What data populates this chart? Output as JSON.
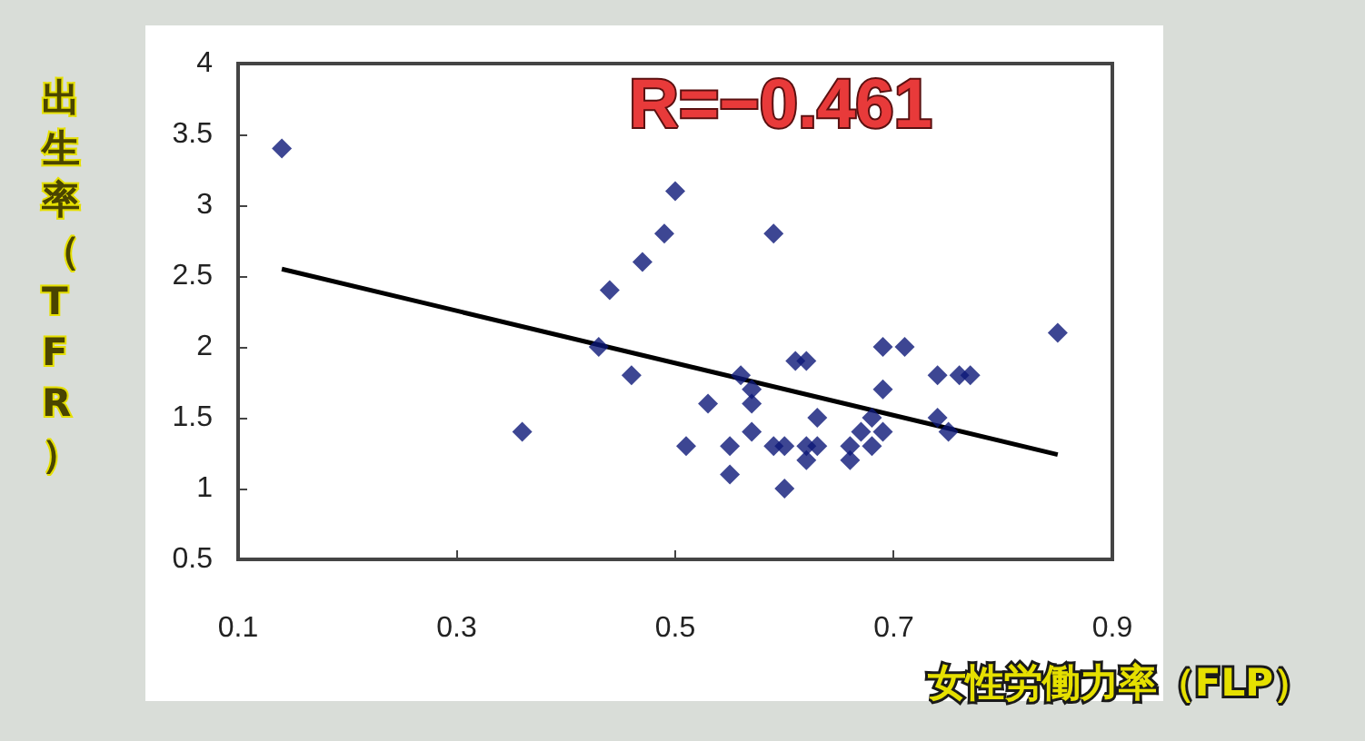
{
  "chart_data": {
    "type": "scatter",
    "xlabel": "女性労働力率（FLP）",
    "ylabel": "出生率（TFR）",
    "annotations": [
      "R=−0.461"
    ],
    "xlim": [
      0.1,
      0.9
    ],
    "xticks": [
      0.1,
      0.3,
      0.5,
      0.7,
      0.9
    ],
    "ylim": [
      0.5,
      4
    ],
    "yticks": [
      0.5,
      1,
      1.5,
      2,
      2.5,
      3,
      3.5,
      4
    ],
    "grid": false,
    "marker": "diamond",
    "series": [
      {
        "color": "#0c1878",
        "x": [
          0.14,
          0.36,
          0.43,
          0.44,
          0.46,
          0.47,
          0.49,
          0.5,
          0.51,
          0.59,
          0.85,
          0.53,
          0.56,
          0.57,
          0.57,
          0.57,
          0.55,
          0.55,
          0.6,
          0.59,
          0.6,
          0.61,
          0.62,
          0.62,
          0.62,
          0.63,
          0.63,
          0.66,
          0.66,
          0.67,
          0.68,
          0.68,
          0.69,
          0.69,
          0.69,
          0.71,
          0.74,
          0.76,
          0.77,
          0.74,
          0.75
        ],
        "values": [
          3.4,
          1.4,
          2.0,
          2.4,
          1.8,
          2.6,
          2.8,
          3.1,
          1.3,
          2.8,
          2.1,
          1.6,
          1.8,
          1.7,
          1.6,
          1.4,
          1.3,
          1.1,
          1.0,
          1.3,
          1.3,
          1.9,
          1.9,
          1.3,
          1.2,
          1.3,
          1.5,
          1.3,
          1.2,
          1.4,
          1.5,
          1.3,
          1.4,
          1.7,
          2.0,
          2.0,
          1.8,
          1.8,
          1.8,
          1.5,
          1.4
        ]
      },
      {
        "type": "line",
        "color": "#000000",
        "marker": "none",
        "line_style": "solid",
        "x": [
          0.14,
          0.85
        ],
        "values": [
          2.55,
          1.24
        ]
      }
    ]
  }
}
